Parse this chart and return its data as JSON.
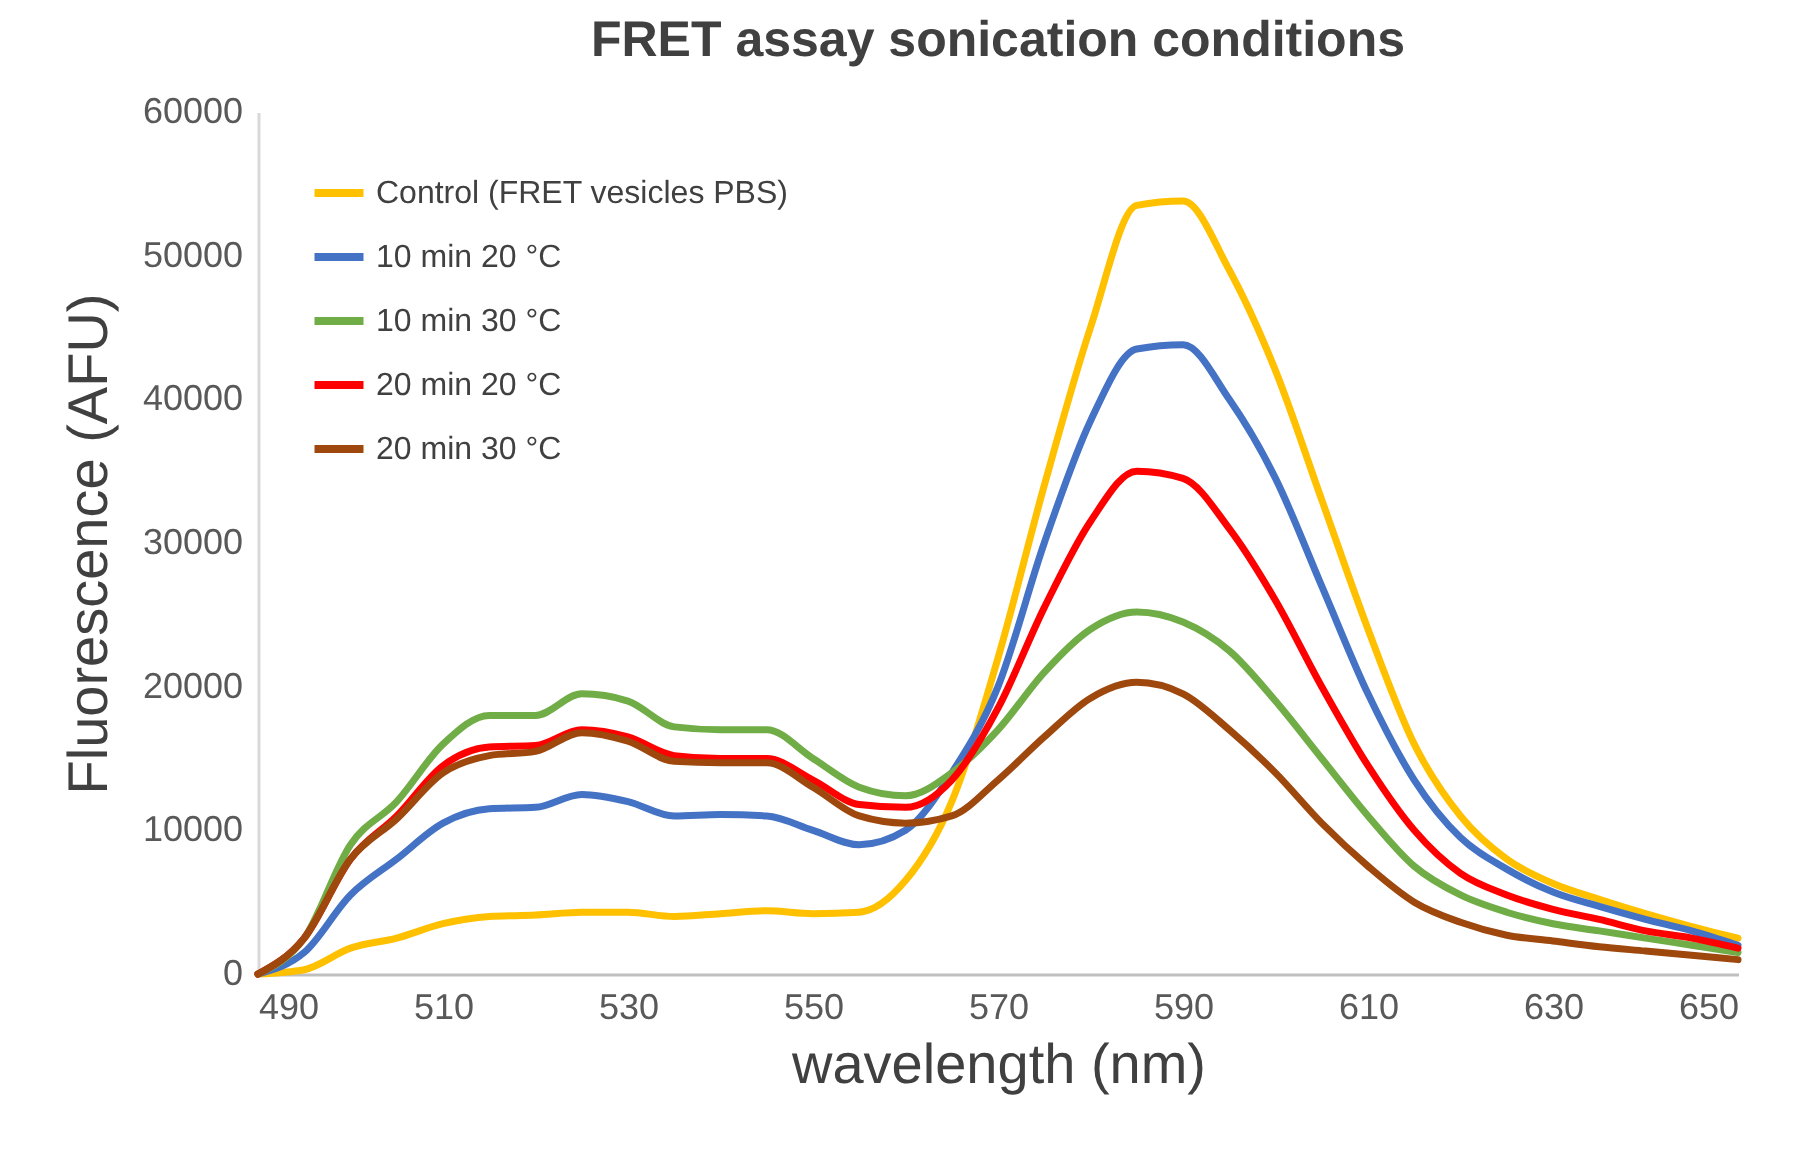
{
  "chart_data": {
    "type": "line",
    "title": "FRET assay sonication conditions",
    "xlabel": "wavelength (nm)",
    "ylabel": "Fluorescence (AFU)",
    "x": [
      490,
      495,
      500,
      505,
      510,
      515,
      520,
      525,
      530,
      535,
      540,
      545,
      550,
      555,
      560,
      565,
      570,
      575,
      580,
      585,
      590,
      595,
      600,
      605,
      610,
      615,
      620,
      625,
      630,
      635,
      640,
      645,
      650
    ],
    "series": [
      {
        "name": "Control (FRET vesicles PBS)",
        "color": "#ffc000",
        "values": [
          0,
          300,
          1800,
          2500,
          3500,
          4000,
          4100,
          4300,
          4300,
          4000,
          4200,
          4400,
          4200,
          4300,
          6500,
          12000,
          22000,
          34000,
          45000,
          53500,
          53800,
          49000,
          42000,
          33000,
          24000,
          16000,
          11000,
          8000,
          6300,
          5200,
          4200,
          3300,
          2500
        ]
      },
      {
        "name": "10 min 20 °C",
        "color": "#4472c4",
        "values": [
          0,
          1500,
          5500,
          8000,
          10500,
          11500,
          11600,
          12500,
          12000,
          11000,
          11100,
          11000,
          10000,
          9000,
          10000,
          14000,
          20000,
          30000,
          38500,
          43500,
          43800,
          40000,
          34500,
          27000,
          19500,
          13500,
          9500,
          7300,
          5700,
          4700,
          3800,
          3000,
          2000
        ]
      },
      {
        "name": "10 min 30 °C",
        "color": "#70ad47",
        "values": [
          0,
          2500,
          9000,
          12000,
          16000,
          18000,
          18000,
          19500,
          19000,
          17200,
          17000,
          17000,
          15000,
          13000,
          12400,
          14000,
          17000,
          21000,
          24000,
          25200,
          24500,
          22500,
          19000,
          15000,
          11000,
          7500,
          5500,
          4300,
          3500,
          3000,
          2500,
          2000,
          1500
        ]
      },
      {
        "name": "20 min 20 °C",
        "color": "#ff0000",
        "values": [
          0,
          2500,
          8000,
          11000,
          14500,
          15800,
          15900,
          17000,
          16500,
          15200,
          15000,
          15000,
          13500,
          11800,
          11600,
          13500,
          18500,
          25500,
          31500,
          35000,
          34500,
          31000,
          26000,
          20000,
          14500,
          10000,
          7000,
          5500,
          4500,
          3800,
          3000,
          2500,
          1800
        ]
      },
      {
        "name": "20 min 30 °C",
        "color": "#9e480e",
        "values": [
          0,
          2500,
          8000,
          10800,
          14000,
          15200,
          15500,
          16800,
          16200,
          14800,
          14700,
          14700,
          13000,
          11000,
          10500,
          11000,
          13500,
          16500,
          19200,
          20300,
          19500,
          17000,
          14000,
          10500,
          7500,
          5000,
          3600,
          2700,
          2300,
          1900,
          1600,
          1300,
          1000
        ]
      }
    ],
    "xlim": [
      490,
      650
    ],
    "xticks": [
      490,
      510,
      530,
      550,
      570,
      590,
      610,
      630,
      650
    ],
    "ylim": [
      0,
      60000
    ],
    "yticks": [
      0,
      10000,
      20000,
      30000,
      40000,
      50000,
      60000
    ],
    "grid": false,
    "legend": "top left",
    "marker": "none",
    "line_style": "solid"
  }
}
